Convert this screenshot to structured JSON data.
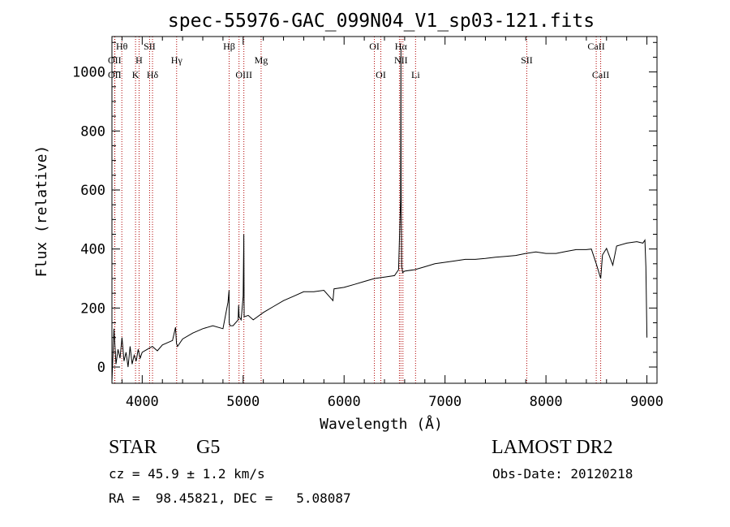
{
  "chart_data": {
    "type": "line",
    "title": "spec-55976-GAC_099N04_V1_sp03-121.fits",
    "xlabel": "Wavelength (Å)",
    "ylabel": "Flux (relative)",
    "xlim": [
      3700,
      9100
    ],
    "ylim": [
      -55,
      1120
    ],
    "xticks": [
      4000,
      5000,
      6000,
      7000,
      8000,
      9000
    ],
    "yticks": [
      0,
      200,
      400,
      600,
      800,
      1000
    ],
    "grid": false,
    "series": [
      {
        "x": [
          3700,
          3720,
          3740,
          3760,
          3780,
          3800,
          3820,
          3840,
          3860,
          3880,
          3900,
          3920,
          3940,
          3960,
          3980,
          4000,
          4050,
          4100,
          4150,
          4200,
          4300,
          4330,
          4340,
          4350,
          4400,
          4500,
          4600,
          4700,
          4800,
          4850,
          4860,
          4862,
          4870,
          4900,
          4950,
          4955,
          4960,
          4980,
          5000,
          5007,
          5010,
          5050,
          5100,
          5200,
          5300,
          5400,
          5500,
          5600,
          5700,
          5800,
          5890,
          5900,
          6000,
          6100,
          6200,
          6300,
          6400,
          6500,
          6540,
          6560,
          6563,
          6565,
          6570,
          6575,
          6580,
          6600,
          6700,
          6800,
          6900,
          7000,
          7100,
          7200,
          7300,
          7400,
          7500,
          7600,
          7700,
          7800,
          7900,
          8000,
          8100,
          8200,
          8300,
          8400,
          8450,
          8498,
          8542,
          8560,
          8600,
          8662,
          8700,
          8800,
          8900,
          8960,
          8980,
          8990,
          9000
        ],
        "y": [
          -50,
          130,
          10,
          60,
          30,
          100,
          20,
          50,
          0,
          70,
          10,
          40,
          20,
          60,
          30,
          50,
          60,
          70,
          55,
          75,
          90,
          135,
          80,
          70,
          95,
          115,
          130,
          140,
          130,
          220,
          260,
          150,
          140,
          140,
          160,
          210,
          170,
          160,
          240,
          450,
          170,
          175,
          160,
          185,
          205,
          225,
          240,
          255,
          255,
          260,
          225,
          265,
          270,
          280,
          290,
          300,
          305,
          310,
          330,
          570,
          1080,
          620,
          340,
          335,
          320,
          325,
          330,
          340,
          350,
          355,
          360,
          365,
          365,
          368,
          372,
          375,
          378,
          385,
          390,
          385,
          385,
          392,
          398,
          398,
          400,
          350,
          300,
          380,
          402,
          345,
          410,
          420,
          425,
          420,
          430,
          340,
          100
        ]
      }
    ],
    "lines": [
      {
        "name": "Hθ",
        "x": 3798
      },
      {
        "name": "OII",
        "x": 3727
      },
      {
        "name": "OII",
        "x": 3729
      },
      {
        "name": "H",
        "x": 3969
      },
      {
        "name": "K",
        "x": 3934
      },
      {
        "name": "SII",
        "x": 4073
      },
      {
        "name": "Hδ",
        "x": 4102
      },
      {
        "name": "Hγ",
        "x": 4341
      },
      {
        "name": "Hβ",
        "x": 4861
      },
      {
        "name": "OIII",
        "x": 5007
      },
      {
        "name": "OIII",
        "x": 4959
      },
      {
        "name": "Mg",
        "x": 5178
      },
      {
        "name": "OI",
        "x": 6300
      },
      {
        "name": "OI",
        "x": 6364
      },
      {
        "name": "Hα",
        "x": 6563
      },
      {
        "name": "NII",
        "x": 6548
      },
      {
        "name": "NII",
        "x": 6583
      },
      {
        "name": "Li",
        "x": 6708
      },
      {
        "name": "SII",
        "x": 7810
      },
      {
        "name": "CaII",
        "x": 8498
      },
      {
        "name": "CaII",
        "x": 8542
      }
    ],
    "line_labels": [
      {
        "text": "Hθ",
        "x": 3798,
        "row": 1
      },
      {
        "text": "OII",
        "x": 3727,
        "row": 2
      },
      {
        "text": "OII",
        "x": 3727,
        "row": 3
      },
      {
        "text": "SII",
        "x": 4073,
        "row": 1
      },
      {
        "text": "H",
        "x": 3969,
        "row": 2
      },
      {
        "text": "K",
        "x": 3934,
        "row": 3
      },
      {
        "text": "Hδ",
        "x": 4102,
        "row": 3
      },
      {
        "text": "Hγ",
        "x": 4341,
        "row": 2
      },
      {
        "text": "Hβ",
        "x": 4861,
        "row": 1
      },
      {
        "text": "Mg",
        "x": 5178,
        "row": 2
      },
      {
        "text": "OIII",
        "x": 5007,
        "row": 3
      },
      {
        "text": "OI",
        "x": 6300,
        "row": 1
      },
      {
        "text": "OI",
        "x": 6364,
        "row": 3
      },
      {
        "text": "Hα",
        "x": 6563,
        "row": 1
      },
      {
        "text": "NII",
        "x": 6563,
        "row": 2
      },
      {
        "text": "Li",
        "x": 6708,
        "row": 3
      },
      {
        "text": "SII",
        "x": 7810,
        "row": 2
      },
      {
        "text": "CaII",
        "x": 8498,
        "row": 1
      },
      {
        "text": "CaII",
        "x": 8542,
        "row": 3
      }
    ]
  },
  "info": {
    "class_label": "STAR",
    "subclass": "G5",
    "survey": "LAMOST DR2",
    "cz": "cz = 45.9 ± 1.2 km/s",
    "obs_date": "Obs-Date: 20120218",
    "radec": "RA =  98.45821, DEC =   5.08087"
  },
  "colors": {
    "spectrum": "#000000",
    "line_markers": "#b00000",
    "text": "#000000"
  }
}
